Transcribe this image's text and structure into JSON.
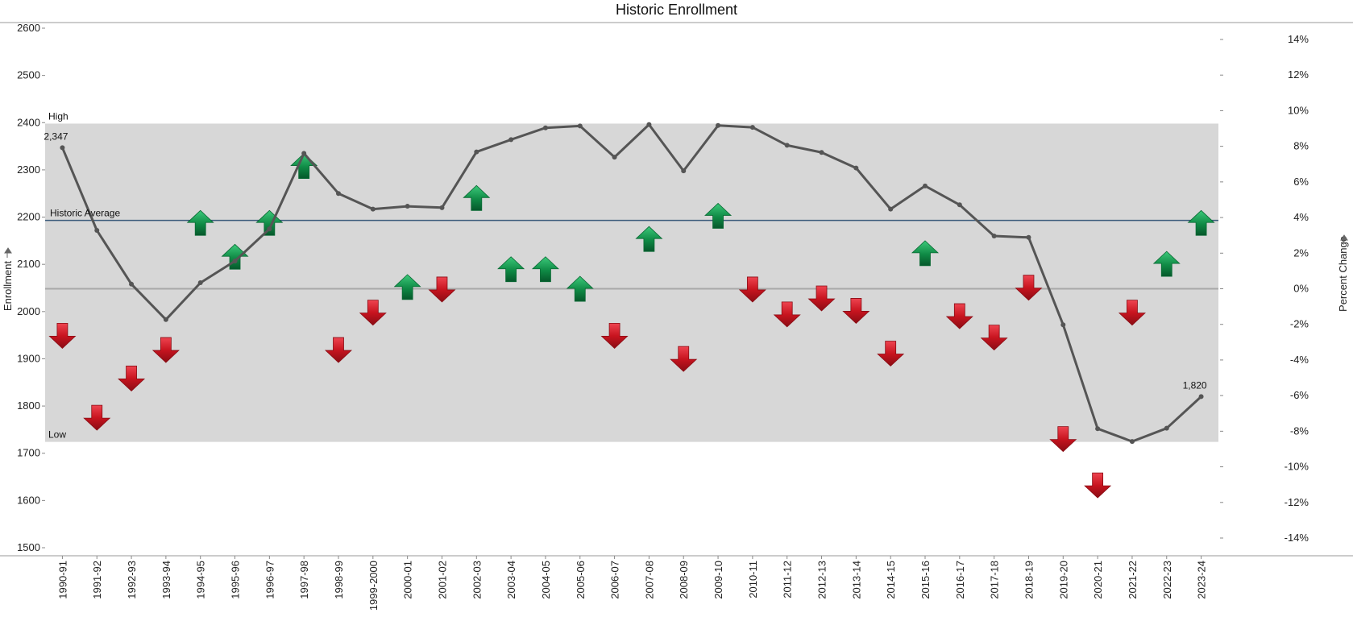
{
  "chart_data": {
    "type": "line",
    "title": "Historic Enrollment",
    "ylabel": "Enrollment",
    "y2label": "Percent Change",
    "ylim": [
      1500,
      2600
    ],
    "y2lim": [
      -15,
      15
    ],
    "yticks": [
      1500,
      1600,
      1700,
      1800,
      1900,
      2000,
      2100,
      2200,
      2300,
      2400,
      2500,
      2600
    ],
    "y2ticks": [
      14,
      12,
      10,
      8,
      6,
      4,
      2,
      0,
      -2,
      -4,
      -6,
      -8,
      -10,
      -12,
      -14
    ],
    "y2tick_labels": [
      "14%",
      "12%",
      "10%",
      "8%",
      "6%",
      "4%",
      "2%",
      "0%",
      "-2%",
      "-4%",
      "-6%",
      "-8%",
      "-10%",
      "-12%",
      "-14%"
    ],
    "categories": [
      "1990-91",
      "1991-92",
      "1992-93",
      "1993-94",
      "1994-95",
      "1995-96",
      "1996-97",
      "1997-98",
      "1998-99",
      "1999-2000",
      "2000-01",
      "2001-02",
      "2002-03",
      "2003-04",
      "2004-05",
      "2005-06",
      "2006-07",
      "2007-08",
      "2008-09",
      "2009-10",
      "2010-11",
      "2011-12",
      "2012-13",
      "2013-14",
      "2014-15",
      "2015-16",
      "2016-17",
      "2017-18",
      "2018-19",
      "2019-20",
      "2020-21",
      "2021-22",
      "2022-23",
      "2023-24"
    ],
    "series": [
      {
        "name": "Enrollment",
        "axis": "left",
        "values": [
          2347,
          2172,
          2058,
          1983,
          2061,
          2107,
          2175,
          2335,
          2250,
          2217,
          2223,
          2220,
          2338,
          2364,
          2389,
          2393,
          2327,
          2396,
          2298,
          2394,
          2390,
          2352,
          2337,
          2304,
          2217,
          2266,
          2226,
          2160,
          2157,
          1972,
          1752,
          1725,
          1753,
          1820
        ]
      },
      {
        "name": "Percent Change",
        "axis": "right",
        "values": [
          -2.8,
          -7.4,
          -5.2,
          -3.6,
          3.9,
          2.0,
          3.9,
          7.1,
          -3.6,
          -1.5,
          0.3,
          -0.2,
          5.3,
          1.3,
          1.3,
          0.2,
          -2.8,
          3.0,
          -4.1,
          4.3,
          -0.2,
          -1.6,
          -0.7,
          -1.4,
          -3.8,
          2.2,
          -1.7,
          -2.9,
          -0.1,
          -8.6,
          -11.2,
          -1.5,
          1.6,
          3.9
        ]
      }
    ],
    "reference_band": {
      "high": 2398,
      "low": 1724,
      "high_label": "High",
      "low_label": "Low",
      "color": "#d7d7d7"
    },
    "reference_line": {
      "value": 2193,
      "label": "Historic Average",
      "color": "#3a5a7a"
    },
    "zero_line_color": "#a8a8a8",
    "line_color": "#555555",
    "up_color": "#0f8a45",
    "down_color": "#c8141f",
    "data_labels": [
      {
        "index": 0,
        "text": "2,347"
      },
      {
        "index": 33,
        "text": "1,820"
      }
    ],
    "grid": false,
    "legend": "none"
  }
}
